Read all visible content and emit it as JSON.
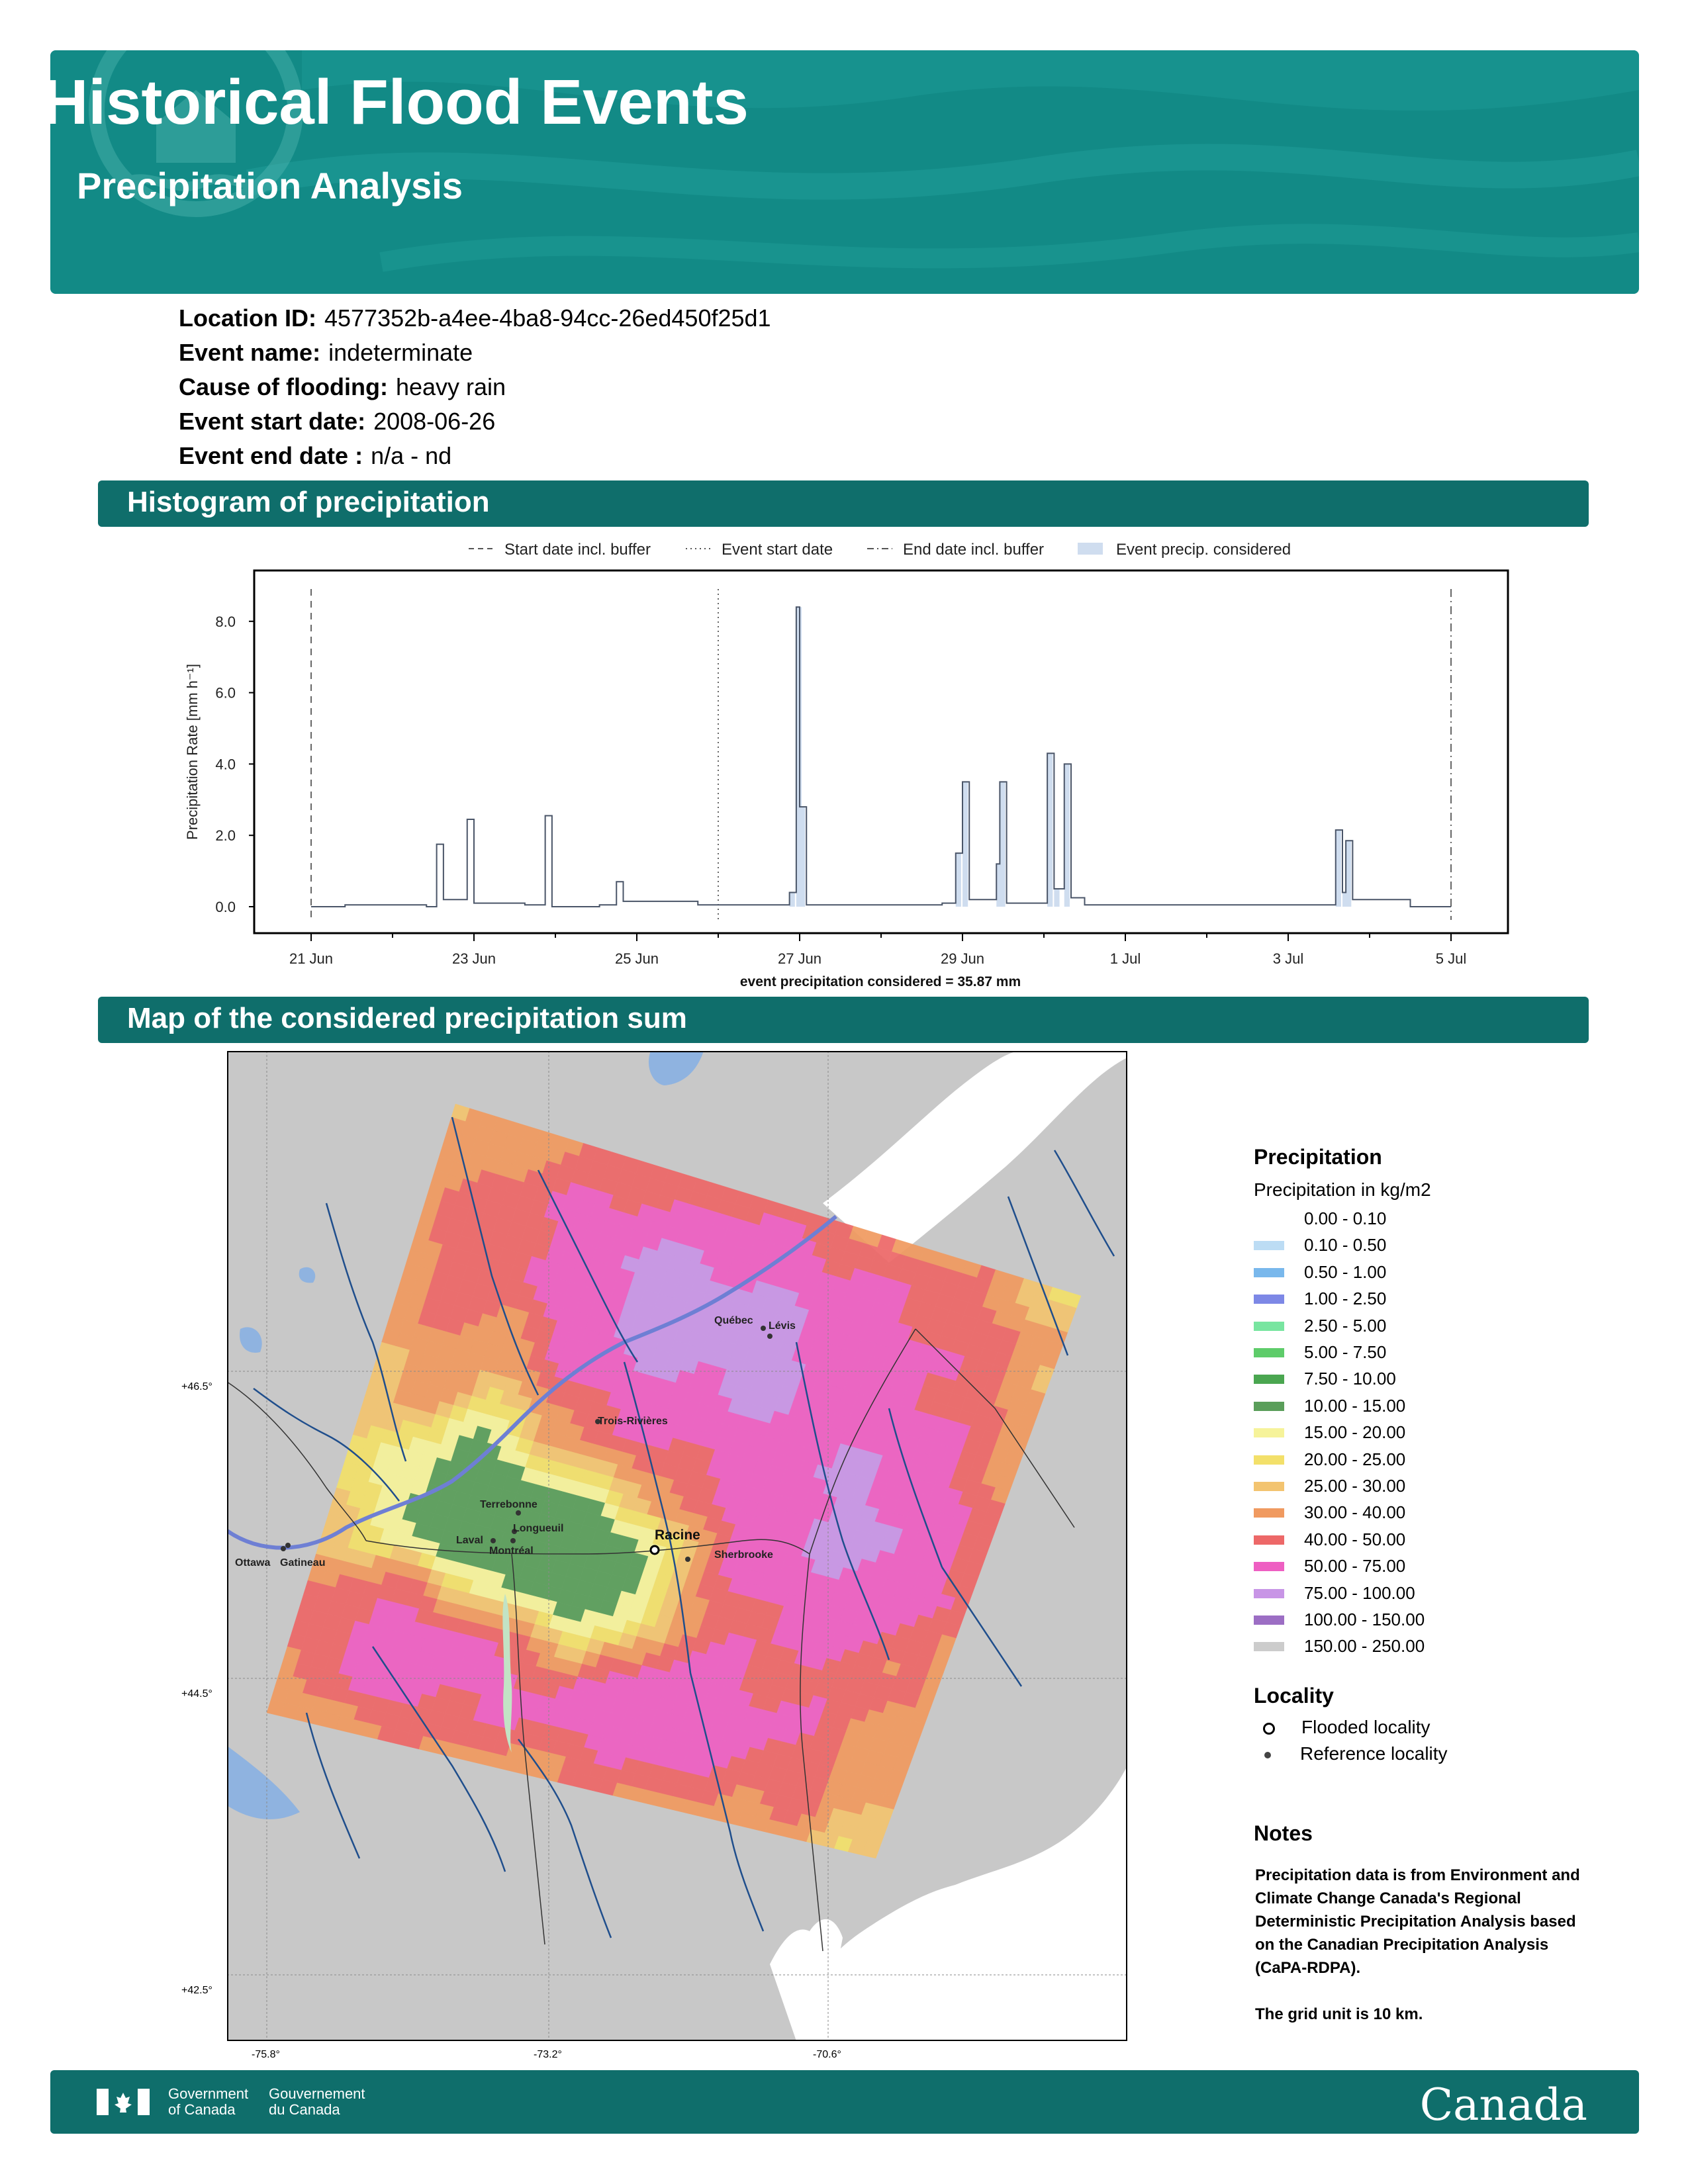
{
  "header": {
    "title": "Historical Flood Events",
    "subtitle": "Precipitation Analysis"
  },
  "meta": [
    {
      "label": "Location ID:",
      "value": "4577352b-a4ee-4ba8-94cc-26ed450f25d1"
    },
    {
      "label": "Event name:",
      "value": "indeterminate"
    },
    {
      "label": "Cause of flooding:",
      "value": "heavy rain"
    },
    {
      "label": "Event start date:",
      "value": "2008-06-26"
    },
    {
      "label": "Event end date :",
      "value": "n/a - nd"
    }
  ],
  "sections": {
    "histogram": "Histogram of precipitation",
    "map": "Map of the considered precipitation sum"
  },
  "chart_data": {
    "type": "line",
    "title": "",
    "xlabel": "",
    "ylabel": "Precipitation Rate [mm h⁻¹]",
    "xlim": [
      "2008-06-21",
      "2008-07-05"
    ],
    "ylim": [
      -0.9,
      9.2
    ],
    "yticks": [
      "0.0",
      "2.0",
      "4.0",
      "6.0",
      "8.0"
    ],
    "xticks": [
      "21 Jun",
      "23 Jun",
      "25 Jun",
      "27 Jun",
      "29 Jun",
      "1 Jul",
      "3 Jul",
      "5 Jul"
    ],
    "legend": [
      "Start date incl. buffer",
      "Event start date",
      "End date incl. buffer",
      "Event precip. considered"
    ],
    "legend_position": "top",
    "annotation": "event precipitation considered = 35.87 mm",
    "vlines": [
      {
        "name": "Start date incl. buffer",
        "x": "2008-06-21 00:00",
        "style": "dashed"
      },
      {
        "name": "Event start date",
        "x": "2008-06-26 00:00",
        "style": "dotted"
      },
      {
        "name": "End date incl. buffer",
        "x": "2008-07-05 00:00",
        "style": "dashdot"
      }
    ],
    "series": [
      {
        "name": "",
        "points": [
          [
            "2008-06-21 00:00",
            0.0
          ],
          [
            "2008-06-21 10:00",
            0.05
          ],
          [
            "2008-06-22 10:00",
            0.0
          ],
          [
            "2008-06-22 13:00",
            1.75
          ],
          [
            "2008-06-22 15:00",
            0.2
          ],
          [
            "2008-06-22 22:00",
            2.45
          ],
          [
            "2008-06-23 00:00",
            0.1
          ],
          [
            "2008-06-23 15:00",
            0.05
          ],
          [
            "2008-06-23 21:00",
            2.55
          ],
          [
            "2008-06-23 23:00",
            0.0
          ],
          [
            "2008-06-24 13:00",
            0.05
          ],
          [
            "2008-06-24 18:00",
            0.7
          ],
          [
            "2008-06-24 20:00",
            0.15
          ],
          [
            "2008-06-25 18:00",
            0.05
          ],
          [
            "2008-06-26 12:00",
            0.05
          ],
          [
            "2008-06-26 21:00",
            0.4
          ],
          [
            "2008-06-26 23:00",
            8.4
          ],
          [
            "2008-06-27 00:00",
            2.8
          ],
          [
            "2008-06-27 02:00",
            0.05
          ],
          [
            "2008-06-28 18:00",
            0.1
          ],
          [
            "2008-06-28 22:00",
            1.5
          ],
          [
            "2008-06-29 00:00",
            3.5
          ],
          [
            "2008-06-29 02:00",
            0.2
          ],
          [
            "2008-06-29 10:00",
            1.2
          ],
          [
            "2008-06-29 11:00",
            3.5
          ],
          [
            "2008-06-29 13:00",
            0.1
          ],
          [
            "2008-06-30 01:00",
            4.3
          ],
          [
            "2008-06-30 03:00",
            0.5
          ],
          [
            "2008-06-30 06:00",
            4.0
          ],
          [
            "2008-06-30 08:00",
            0.25
          ],
          [
            "2008-06-30 12:00",
            0.05
          ],
          [
            "2008-07-01 12:00",
            0.05
          ],
          [
            "2008-07-03 14:00",
            2.15
          ],
          [
            "2008-07-03 16:00",
            0.4
          ],
          [
            "2008-07-03 17:00",
            1.85
          ],
          [
            "2008-07-03 19:00",
            0.2
          ],
          [
            "2008-07-04 12:00",
            0.0
          ],
          [
            "2008-07-05 00:00",
            0.0
          ]
        ]
      }
    ],
    "grid": false
  },
  "map": {
    "lat_labels": [
      "+46.5°",
      "+44.5°",
      "+42.5°"
    ],
    "lon_labels": [
      "-75.8°",
      "-73.2°",
      "-70.6°"
    ],
    "flooded_locality": "Racine",
    "reference_localities": [
      "Québec",
      "Lévis",
      "Trois-Rivières",
      "Terrebonne",
      "Longueuil",
      "Laval",
      "Montréal",
      "Sherbrooke",
      "Ottawa",
      "Gatineau"
    ],
    "colors": {
      "land": "#c8c8c8",
      "water": "#ffffff",
      "lake": "#8fb3e0",
      "river": "#1f4e8c"
    }
  },
  "legend": {
    "title": "Precipitation",
    "subtitle": "Precipitation in kg/m2",
    "items": [
      {
        "label": "0.00 - 0.10",
        "color": "#ffffff"
      },
      {
        "label": "0.10 - 0.50",
        "color": "#bcdcf4"
      },
      {
        "label": "0.50 - 1.00",
        "color": "#79b8ec"
      },
      {
        "label": "1.00 - 2.50",
        "color": "#7d88e6"
      },
      {
        "label": "2.50 - 5.00",
        "color": "#78e5a0"
      },
      {
        "label": "5.00 - 7.50",
        "color": "#5ecc6a"
      },
      {
        "label": "7.50 - 10.00",
        "color": "#4aa650"
      },
      {
        "label": "10.00 - 15.00",
        "color": "#5a9e5a"
      },
      {
        "label": "15.00 - 20.00",
        "color": "#f6f39a"
      },
      {
        "label": "20.00 - 25.00",
        "color": "#f3e06a"
      },
      {
        "label": "25.00 - 30.00",
        "color": "#f3c470"
      },
      {
        "label": "30.00 - 40.00",
        "color": "#f09a60"
      },
      {
        "label": "40.00 - 50.00",
        "color": "#ed6868"
      },
      {
        "label": "50.00 - 75.00",
        "color": "#ee5fc2"
      },
      {
        "label": "75.00 - 100.00",
        "color": "#c895e6"
      },
      {
        "label": "100.00 - 150.00",
        "color": "#9c6ec4"
      },
      {
        "label": "150.00 - 250.00",
        "color": "#cccccc"
      }
    ]
  },
  "locality": {
    "title": "Locality",
    "items": [
      "Flooded locality",
      "Reference locality"
    ]
  },
  "notes": {
    "title": "Notes",
    "paragraphs": [
      "Precipitation data is from Environment and Climate Change Canada's Regional Deterministic Precipitation Analysis based on the Canadian Precipitation Analysis (CaPA-RDPA).",
      "The grid unit is 10 km."
    ]
  },
  "footer": {
    "gov_en": "Government of Canada",
    "gov_fr": "Gouvernement du Canada",
    "wordmark": "Canada"
  }
}
